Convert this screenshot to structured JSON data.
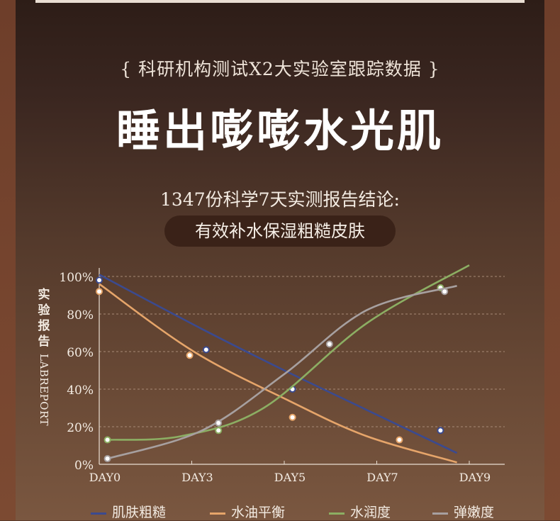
{
  "header": {
    "subtitle": "{ 科研机构测试X2大实验室跟踪数据 }",
    "title": "睡出嘭嘭水光肌",
    "conclusion": "1347份科学7天实测报告结论:",
    "pill": "有效补水保湿粗糙皮肤"
  },
  "chart_data": {
    "type": "line",
    "title": "",
    "xlabel": "",
    "ylabel": "实验报告",
    "ylabel_en": "LABREPORT",
    "x_ticks": [
      "DAY0",
      "DAY3",
      "DAY5",
      "DAY7",
      "DAY9"
    ],
    "y_ticks": [
      "0%",
      "20%",
      "40%",
      "60%",
      "80%",
      "100%"
    ],
    "xlim": [
      0,
      9
    ],
    "ylim": [
      0,
      100
    ],
    "grid": true,
    "legend_position": "bottom",
    "series": [
      {
        "name": "肌肤粗糙",
        "color": "#3b4a8f",
        "points": [
          [
            0,
            101
          ],
          [
            2.5,
            72
          ],
          [
            4.5,
            50
          ],
          [
            6.5,
            29
          ],
          [
            8.7,
            6
          ]
        ],
        "markers": [
          [
            0,
            98
          ],
          [
            2.6,
            61
          ],
          [
            4.7,
            40
          ],
          [
            8.3,
            18
          ]
        ]
      },
      {
        "name": "水油平衡",
        "color": "#e6a56a",
        "points": [
          [
            0,
            96
          ],
          [
            2.3,
            60
          ],
          [
            4.6,
            34
          ],
          [
            6.5,
            15
          ],
          [
            8.7,
            1
          ]
        ],
        "markers": [
          [
            0,
            92
          ],
          [
            2.2,
            58
          ],
          [
            4.7,
            25
          ],
          [
            7.3,
            13
          ]
        ]
      },
      {
        "name": "水润度",
        "color": "#8cae63",
        "points": [
          [
            0.2,
            13
          ],
          [
            2.0,
            15
          ],
          [
            4.0,
            30
          ],
          [
            6.5,
            75
          ],
          [
            9.0,
            106
          ]
        ],
        "markers": [
          [
            0.2,
            13
          ],
          [
            2.9,
            18
          ],
          [
            8.3,
            94
          ]
        ]
      },
      {
        "name": "弹嫩度",
        "color": "#a7a0a0",
        "points": [
          [
            0.2,
            3
          ],
          [
            2.5,
            18
          ],
          [
            4.5,
            48
          ],
          [
            6.5,
            82
          ],
          [
            8.7,
            95
          ]
        ],
        "markers": [
          [
            0.2,
            3
          ],
          [
            2.9,
            22
          ],
          [
            5.6,
            64
          ],
          [
            8.4,
            92
          ]
        ]
      }
    ]
  }
}
